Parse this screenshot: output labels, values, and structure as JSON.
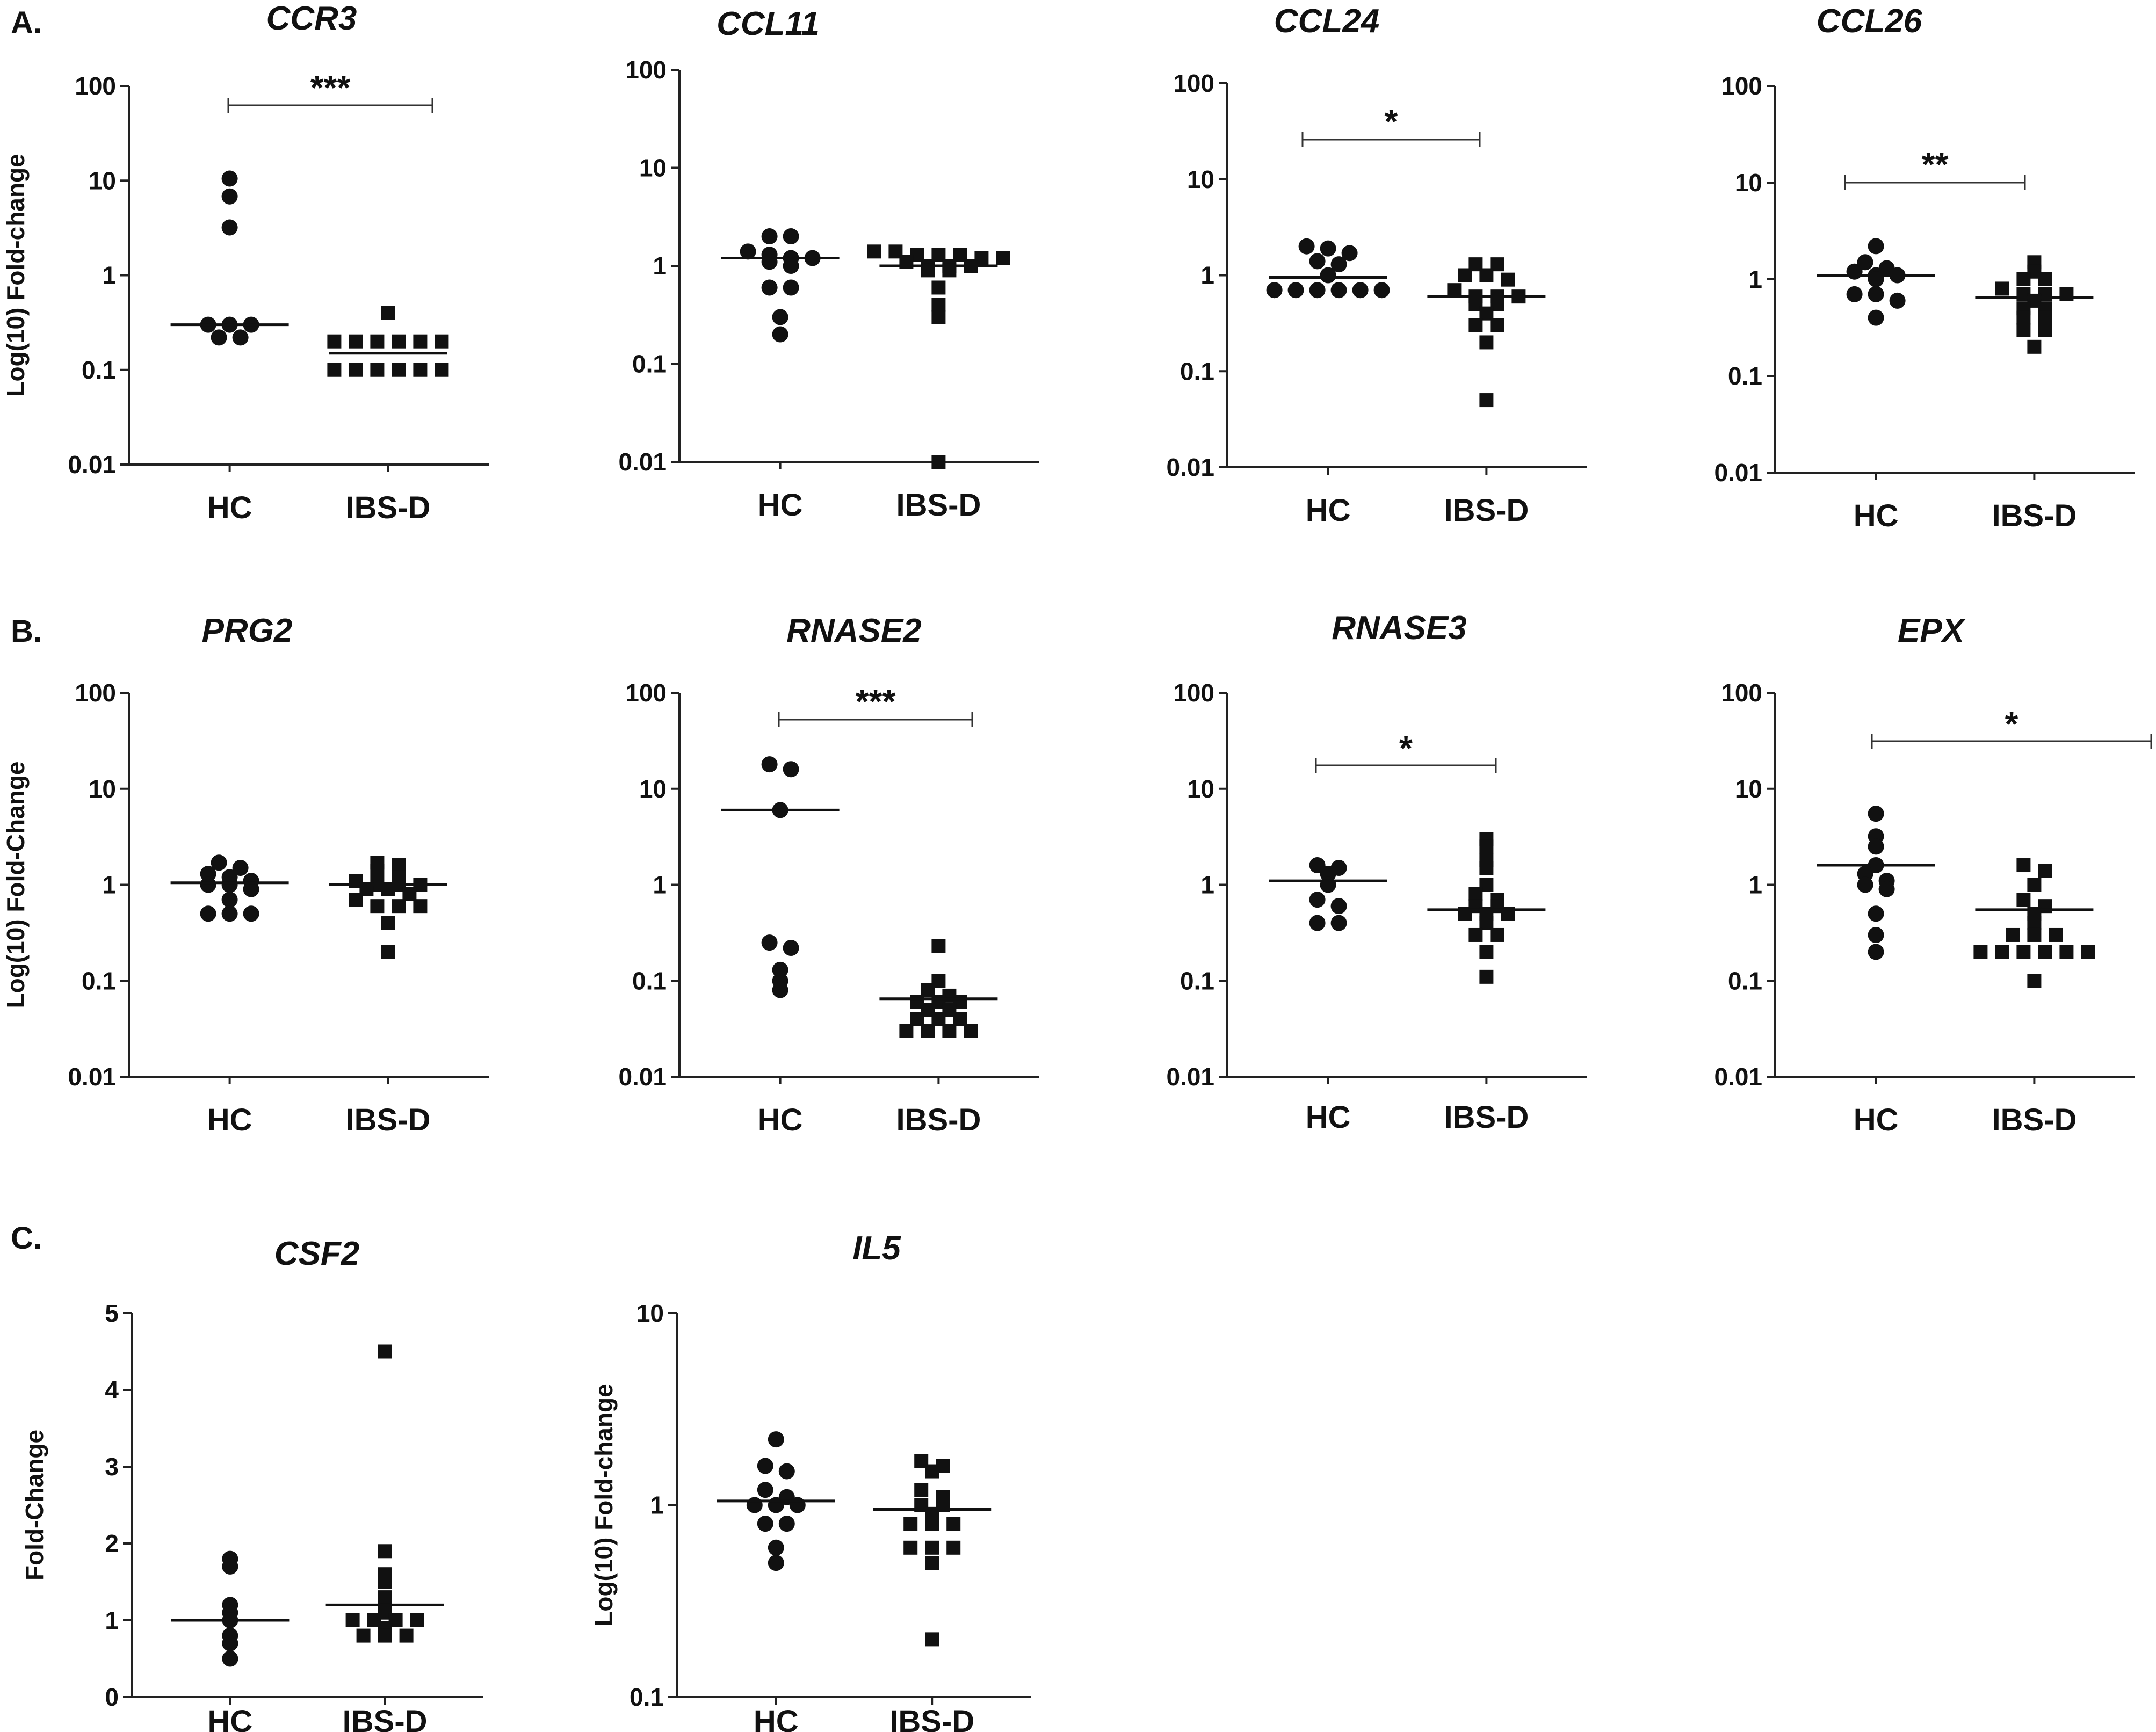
{
  "figure": {
    "panel_labels": [
      "A.",
      "B.",
      "C."
    ],
    "groups": [
      "HC",
      "IBS-D"
    ]
  },
  "chart_data": [
    {
      "id": "CCR3",
      "panel": "A",
      "type": "scatter",
      "title": "CCR3",
      "yscale": "log",
      "ylim": [
        0.01,
        100
      ],
      "yticks": [
        "0.01",
        "0.1",
        "1",
        "10",
        "100"
      ],
      "ylabel": "Log(10) Fold-change",
      "categories": [
        "HC",
        "IBS-D"
      ],
      "series": [
        {
          "name": "HC",
          "marker": "circle",
          "values": [
            10.5,
            6.8,
            3.2,
            0.3,
            0.3,
            0.3,
            0.22,
            0.22
          ],
          "center": 0.3
        },
        {
          "name": "IBS-D",
          "marker": "square",
          "values": [
            0.4,
            0.2,
            0.2,
            0.2,
            0.2,
            0.2,
            0.2,
            0.1,
            0.1,
            0.1,
            0.1,
            0.1,
            0.1
          ],
          "center": 0.15
        }
      ],
      "significance": "***"
    },
    {
      "id": "CCL11",
      "panel": "A",
      "type": "scatter",
      "title": "CCL11",
      "yscale": "log",
      "ylim": [
        0.01,
        100
      ],
      "yticks": [
        "0.01",
        "0.1",
        "1",
        "10",
        "100"
      ],
      "ylabel": "",
      "categories": [
        "HC",
        "IBS-D"
      ],
      "series": [
        {
          "name": "HC",
          "marker": "circle",
          "values": [
            2.0,
            2.0,
            1.4,
            1.3,
            1.2,
            1.2,
            1.1,
            1.0,
            0.6,
            0.6,
            0.3,
            0.2
          ],
          "center": 1.2
        },
        {
          "name": "IBS-D",
          "marker": "square",
          "values": [
            1.4,
            1.4,
            1.3,
            1.3,
            1.3,
            1.2,
            1.2,
            1.1,
            1.0,
            1.0,
            1.0,
            0.9,
            0.9,
            0.6,
            0.4,
            0.3,
            0.01
          ],
          "center": 1.0
        }
      ],
      "significance": ""
    },
    {
      "id": "CCL24",
      "panel": "A",
      "type": "scatter",
      "title": "CCL24",
      "yscale": "log",
      "ylim": [
        0.01,
        100
      ],
      "yticks": [
        "0.01",
        "0.1",
        "1",
        "10",
        "100"
      ],
      "ylabel": "",
      "categories": [
        "HC",
        "IBS-D"
      ],
      "series": [
        {
          "name": "HC",
          "marker": "circle",
          "values": [
            2.0,
            1.9,
            1.7,
            1.4,
            1.3,
            1.0,
            0.7,
            0.7,
            0.7,
            0.7,
            0.7,
            0.7
          ],
          "center": 0.95
        },
        {
          "name": "IBS-D",
          "marker": "square",
          "values": [
            1.3,
            1.3,
            1.0,
            1.0,
            0.9,
            0.7,
            0.6,
            0.6,
            0.6,
            0.5,
            0.5,
            0.4,
            0.3,
            0.3,
            0.2,
            0.05
          ],
          "center": 0.6
        }
      ],
      "significance": "*"
    },
    {
      "id": "CCL26",
      "panel": "A",
      "type": "scatter",
      "title": "CCL26",
      "yscale": "log",
      "ylim": [
        0.01,
        100
      ],
      "yticks": [
        "0.01",
        "0.1",
        "1",
        "10",
        "100"
      ],
      "ylabel": "",
      "categories": [
        "HC",
        "IBS-D"
      ],
      "series": [
        {
          "name": "HC",
          "marker": "circle",
          "values": [
            2.2,
            1.5,
            1.3,
            1.2,
            1.1,
            1.1,
            1.0,
            0.7,
            0.7,
            0.6,
            0.4
          ],
          "center": 1.1
        },
        {
          "name": "IBS-D",
          "marker": "square",
          "values": [
            1.5,
            1.2,
            1.0,
            1.0,
            0.8,
            0.7,
            0.7,
            0.7,
            0.6,
            0.5,
            0.5,
            0.4,
            0.4,
            0.3,
            0.3,
            0.2
          ],
          "center": 0.65
        }
      ],
      "significance": "**"
    },
    {
      "id": "PRG2",
      "panel": "B",
      "type": "scatter",
      "title": "PRG2",
      "yscale": "log",
      "ylim": [
        0.01,
        100
      ],
      "yticks": [
        "0.01",
        "0.1",
        "1",
        "10",
        "100"
      ],
      "ylabel": "Log(10) Fold-Change",
      "categories": [
        "HC",
        "IBS-D"
      ],
      "series": [
        {
          "name": "HC",
          "marker": "circle",
          "values": [
            1.7,
            1.5,
            1.3,
            1.2,
            1.1,
            1.0,
            1.0,
            0.9,
            0.7,
            0.5,
            0.5,
            0.5
          ],
          "center": 1.05
        },
        {
          "name": "IBS-D",
          "marker": "square",
          "values": [
            1.7,
            1.6,
            1.4,
            1.2,
            1.1,
            1.0,
            1.0,
            1.0,
            0.9,
            0.9,
            0.8,
            0.7,
            0.6,
            0.6,
            0.6,
            0.4,
            0.2
          ],
          "center": 1.0
        }
      ],
      "significance": ""
    },
    {
      "id": "RNASE2",
      "panel": "B",
      "type": "scatter",
      "title": "RNASE2",
      "yscale": "log",
      "ylim": [
        0.01,
        100
      ],
      "yticks": [
        "0.01",
        "0.1",
        "1",
        "10",
        "100"
      ],
      "ylabel": "",
      "categories": [
        "HC",
        "IBS-D"
      ],
      "series": [
        {
          "name": "HC",
          "marker": "circle",
          "values": [
            18,
            16,
            6,
            0.25,
            0.22,
            0.13,
            0.1,
            0.08
          ],
          "center": 6
        },
        {
          "name": "IBS-D",
          "marker": "square",
          "values": [
            0.23,
            0.1,
            0.08,
            0.07,
            0.06,
            0.06,
            0.06,
            0.05,
            0.05,
            0.04,
            0.04,
            0.04,
            0.03,
            0.03,
            0.03,
            0.03
          ],
          "center": 0.065
        }
      ],
      "significance": "***"
    },
    {
      "id": "RNASE3",
      "panel": "B",
      "type": "scatter",
      "title": "RNASE3",
      "yscale": "log",
      "ylim": [
        0.01,
        100
      ],
      "yticks": [
        "0.01",
        "0.1",
        "1",
        "10",
        "100"
      ],
      "ylabel": "",
      "categories": [
        "HC",
        "IBS-D"
      ],
      "series": [
        {
          "name": "HC",
          "marker": "circle",
          "values": [
            1.6,
            1.5,
            1.3,
            1.0,
            0.7,
            0.6,
            0.4,
            0.4
          ],
          "center": 1.1
        },
        {
          "name": "IBS-D",
          "marker": "square",
          "values": [
            3.0,
            2.5,
            1.8,
            1.5,
            1.0,
            0.8,
            0.7,
            0.6,
            0.6,
            0.5,
            0.5,
            0.5,
            0.4,
            0.3,
            0.3,
            0.2,
            0.11
          ],
          "center": 0.55
        }
      ],
      "significance": "*"
    },
    {
      "id": "EPX",
      "panel": "B",
      "type": "scatter",
      "title": "EPX",
      "yscale": "log",
      "ylim": [
        0.01,
        100
      ],
      "yticks": [
        "0.01",
        "0.1",
        "1",
        "10",
        "100"
      ],
      "ylabel": "",
      "categories": [
        "HC",
        "IBS-D"
      ],
      "series": [
        {
          "name": "HC",
          "marker": "circle",
          "values": [
            5.5,
            3.2,
            2.5,
            1.6,
            1.3,
            1.1,
            1.0,
            0.9,
            0.5,
            0.3,
            0.2
          ],
          "center": 1.6
        },
        {
          "name": "IBS-D",
          "marker": "square",
          "values": [
            1.6,
            1.4,
            1.0,
            0.7,
            0.6,
            0.5,
            0.4,
            0.3,
            0.3,
            0.3,
            0.2,
            0.2,
            0.2,
            0.2,
            0.2,
            0.2,
            0.1
          ],
          "center": 0.55
        }
      ],
      "significance": "*"
    },
    {
      "id": "CSF2",
      "panel": "C",
      "type": "scatter",
      "title": "CSF2",
      "yscale": "linear",
      "ylim": [
        0,
        5
      ],
      "yticks": [
        "0",
        "1",
        "2",
        "3",
        "4",
        "5"
      ],
      "ylabel": "Fold-Change",
      "categories": [
        "HC",
        "IBS-D"
      ],
      "series": [
        {
          "name": "HC",
          "marker": "circle",
          "values": [
            1.8,
            1.7,
            1.2,
            1.1,
            1.0,
            0.8,
            0.7,
            0.5
          ],
          "center": 1.0
        },
        {
          "name": "IBS-D",
          "marker": "square",
          "values": [
            4.5,
            1.9,
            1.6,
            1.5,
            1.3,
            1.2,
            1.1,
            1.0,
            1.0,
            1.0,
            1.0,
            0.9,
            0.8,
            0.8,
            0.8
          ],
          "center": 1.2
        }
      ],
      "significance": ""
    },
    {
      "id": "IL5",
      "panel": "C",
      "type": "scatter",
      "title": "IL5",
      "yscale": "log",
      "ylim": [
        0.1,
        10
      ],
      "yticks": [
        "0.1",
        "1",
        "10"
      ],
      "ylabel": "Log(10) Fold-change",
      "categories": [
        "HC",
        "IBS-D"
      ],
      "series": [
        {
          "name": "HC",
          "marker": "circle",
          "values": [
            2.2,
            1.6,
            1.5,
            1.2,
            1.1,
            1.0,
            1.0,
            1.0,
            0.8,
            0.8,
            0.6,
            0.5
          ],
          "center": 1.05
        },
        {
          "name": "IBS-D",
          "marker": "square",
          "values": [
            1.7,
            1.6,
            1.5,
            1.2,
            1.1,
            1.0,
            1.0,
            0.9,
            0.8,
            0.8,
            0.8,
            0.6,
            0.6,
            0.6,
            0.5,
            0.2
          ],
          "center": 0.95
        }
      ],
      "significance": ""
    }
  ]
}
